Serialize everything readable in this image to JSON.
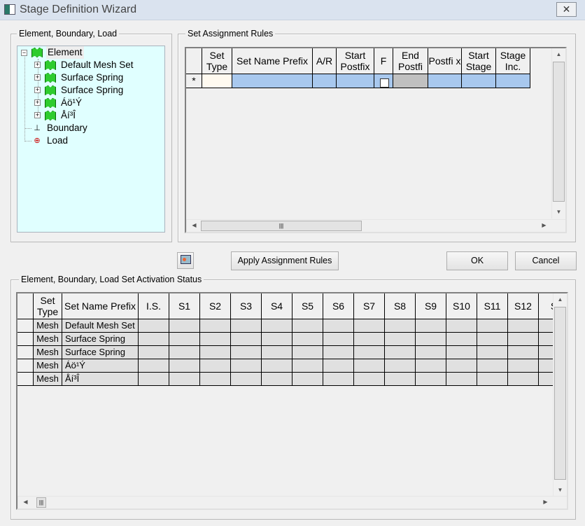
{
  "window": {
    "title": "Stage Definition Wizard",
    "close_label": "✕"
  },
  "tree_group": {
    "label": "Element, Boundary, Load",
    "root": {
      "label": "Element",
      "children": [
        "Default Mesh Set",
        "Surface Spring",
        "Surface Spring",
        "Áö¹Ý",
        "Åí³Î"
      ]
    },
    "others": [
      {
        "label": "Boundary",
        "icon": "boundary-support-icon"
      },
      {
        "label": "Load",
        "icon": "load-icon"
      }
    ]
  },
  "rules_group": {
    "label": "Set Assignment Rules",
    "columns": [
      "",
      "Set Type",
      "Set Name Prefix",
      "A/R",
      "Start Postfix",
      "F",
      "End Postfi",
      "Postfi x",
      "Start Stage",
      "Stage Inc."
    ],
    "new_row_marker": "*",
    "colors": {
      "selected": "#a8c8ee",
      "settype": "#fffaf0",
      "disabled": "#c0c0c0"
    }
  },
  "buttons": {
    "apply": "Apply Assignment Rules",
    "ok": "OK",
    "cancel": "Cancel",
    "icon": "report-icon"
  },
  "status_group": {
    "label": "Element, Boundary, Load Set Activation Status",
    "columns": [
      "",
      "Set Type",
      "Set Name Prefix",
      "I.S.",
      "S1",
      "S2",
      "S3",
      "S4",
      "S5",
      "S6",
      "S7",
      "S8",
      "S9",
      "S10",
      "S11",
      "S12",
      "S"
    ],
    "rows": [
      [
        "Mesh",
        "Default Mesh Set"
      ],
      [
        "Mesh",
        "Surface Spring"
      ],
      [
        "Mesh",
        "Surface Spring"
      ],
      [
        "Mesh",
        "Áö¹Ý"
      ],
      [
        "Mesh",
        "Åí³Î"
      ]
    ]
  }
}
